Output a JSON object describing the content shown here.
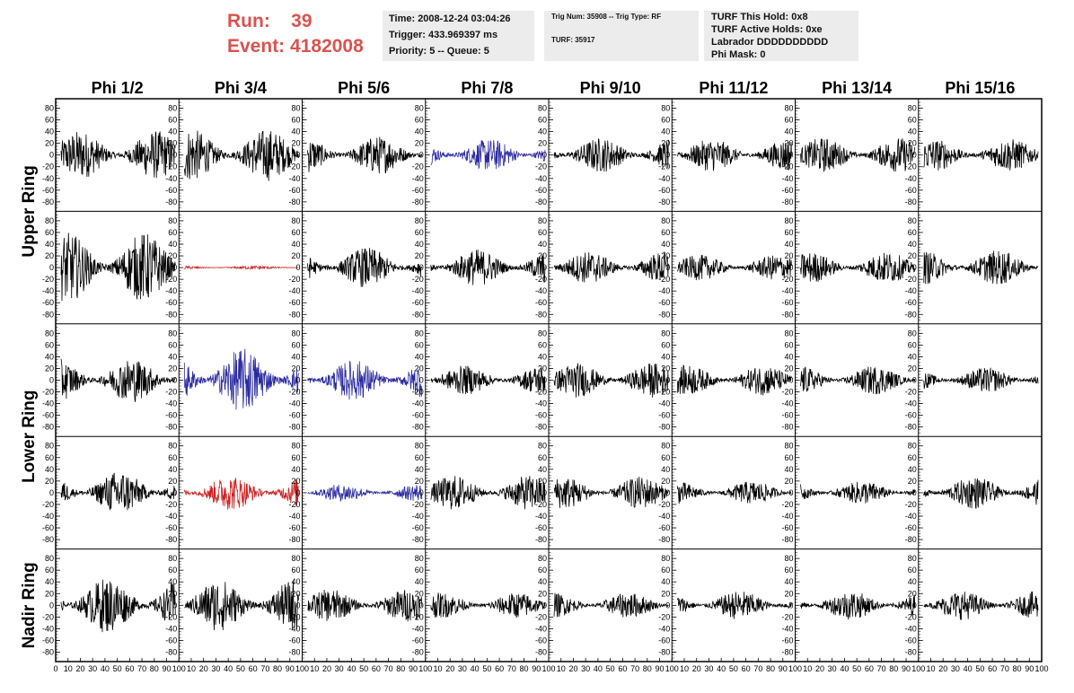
{
  "header": {
    "run_label": "Run:",
    "run_value": "39",
    "event_label": "Event:",
    "event_value": "4182008",
    "time": "Time: 2008-12-24 03:04:26",
    "trigger": "Trigger: 433.969397 ms",
    "priority": "Priority: 5 -- Queue: 5",
    "trig_num": "Trig Num: 35908 -- Trig Type: RF",
    "turf": "TURF: 35917",
    "turf_this_hold": "TURF This Hold: 0x8",
    "turf_active_holds": "TURF Active Holds: 0xe",
    "labrador": "Labrador DDDDDDDDDD",
    "phi_mask": "Phi Mask: 0"
  },
  "chart_data": {
    "type": "line",
    "columns": [
      "Phi 1/2",
      "Phi 3/4",
      "Phi 5/6",
      "Phi 7/8",
      "Phi 9/10",
      "Phi 11/12",
      "Phi 13/14",
      "Phi 15/16"
    ],
    "row_labels": [
      "Upper Ring",
      "Lower Ring",
      "Nadir Ring"
    ],
    "rows": 5,
    "xlim": [
      0,
      100
    ],
    "ylim": [
      -90,
      90
    ],
    "yticks": [
      -80,
      -60,
      -40,
      -20,
      0,
      20,
      40,
      60,
      80
    ],
    "xticks": [
      0,
      10,
      20,
      30,
      40,
      50,
      60,
      70,
      80,
      90,
      100
    ],
    "colors": {
      "default": "#000000",
      "blue": "#2b2ba0",
      "red": "#cc2222"
    },
    "panels": [
      [
        {
          "color": "default",
          "amp": 42
        },
        {
          "color": "default",
          "amp": 45
        },
        {
          "color": "default",
          "amp": 33
        },
        {
          "color": "blue",
          "amp": 28
        },
        {
          "color": "default",
          "amp": 30
        },
        {
          "color": "default",
          "amp": 28
        },
        {
          "color": "default",
          "amp": 30
        },
        {
          "color": "default",
          "amp": 28
        }
      ],
      [
        {
          "color": "default",
          "amp": 60
        },
        {
          "color": "red",
          "amp": 3
        },
        {
          "color": "default",
          "amp": 35
        },
        {
          "color": "default",
          "amp": 32
        },
        {
          "color": "default",
          "amp": 28
        },
        {
          "color": "default",
          "amp": 22
        },
        {
          "color": "default",
          "amp": 27
        },
        {
          "color": "default",
          "amp": 30
        }
      ],
      [
        {
          "color": "default",
          "amp": 38
        },
        {
          "color": "blue",
          "amp": 55
        },
        {
          "color": "blue",
          "amp": 35
        },
        {
          "color": "default",
          "amp": 25
        },
        {
          "color": "default",
          "amp": 30
        },
        {
          "color": "default",
          "amp": 26
        },
        {
          "color": "default",
          "amp": 25
        },
        {
          "color": "default",
          "amp": 22
        }
      ],
      [
        {
          "color": "default",
          "amp": 38
        },
        {
          "color": "red",
          "amp": 30
        },
        {
          "color": "blue",
          "amp": 15
        },
        {
          "color": "default",
          "amp": 30
        },
        {
          "color": "default",
          "amp": 28
        },
        {
          "color": "default",
          "amp": 20
        },
        {
          "color": "default",
          "amp": 20
        },
        {
          "color": "default",
          "amp": 28
        }
      ],
      [
        {
          "color": "default",
          "amp": 48
        },
        {
          "color": "default",
          "amp": 45
        },
        {
          "color": "default",
          "amp": 28
        },
        {
          "color": "default",
          "amp": 22
        },
        {
          "color": "default",
          "amp": 22
        },
        {
          "color": "default",
          "amp": 25
        },
        {
          "color": "default",
          "amp": 25
        },
        {
          "color": "default",
          "amp": 25
        }
      ]
    ]
  }
}
